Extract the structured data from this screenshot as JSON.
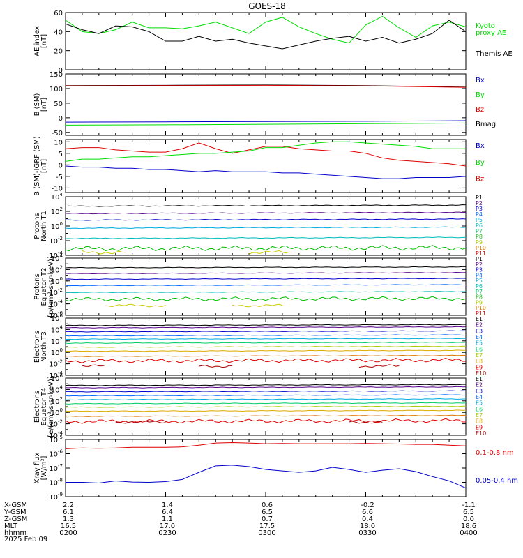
{
  "title": "GOES-18",
  "date": "2025 Feb 09",
  "colors": {
    "black": "#000000",
    "green": "#00dd00",
    "blue": "#0000cc",
    "red": "#dd0000",
    "darkred": "#aa0000"
  },
  "chart_data": [
    {
      "type": "line",
      "ylabel": [
        "AE index",
        "[nT]"
      ],
      "ylim": [
        0,
        60
      ],
      "yticks": [
        "0",
        "20",
        "40",
        "60"
      ],
      "x": [
        0,
        5,
        10,
        15,
        20,
        25,
        30,
        35,
        40,
        45,
        50,
        55,
        60,
        65,
        70,
        75,
        80,
        85,
        90,
        95,
        100,
        105,
        110,
        115,
        120
      ],
      "legend": [
        {
          "text": "Kyoto",
          "color": "#00dd00"
        },
        {
          "text": "proxy AE",
          "color": "#00dd00"
        },
        {
          "text": "Themis AE",
          "color": "#000000"
        }
      ],
      "series": [
        {
          "color": "#00dd00",
          "values": [
            52,
            40,
            38,
            42,
            50,
            44,
            44,
            43,
            46,
            50,
            44,
            38,
            50,
            55,
            45,
            38,
            32,
            28,
            47,
            56,
            44,
            34,
            46,
            50,
            45
          ]
        },
        {
          "color": "#000000",
          "values": [
            48,
            42,
            38,
            46,
            45,
            40,
            30,
            30,
            35,
            30,
            32,
            28,
            25,
            22,
            26,
            30,
            33,
            35,
            30,
            34,
            28,
            32,
            38,
            52,
            40
          ]
        }
      ]
    },
    {
      "type": "line",
      "ylabel": [
        "B (SM)",
        "[nT]"
      ],
      "ylim": [
        -60,
        150
      ],
      "yticks": [
        "-50",
        "0",
        "50",
        "100",
        "150"
      ],
      "x": [
        0,
        30,
        60,
        90,
        120
      ],
      "legend": [
        {
          "text": "Bx",
          "color": "#0000cc"
        },
        {
          "text": "By",
          "color": "#00dd00"
        },
        {
          "text": "Bz",
          "color": "#dd0000"
        },
        {
          "text": "Bmag",
          "color": "#000000"
        }
      ],
      "series": [
        {
          "color": "#000000",
          "values": [
            110,
            111,
            112,
            110,
            105
          ]
        },
        {
          "color": "#dd0000",
          "values": [
            109,
            110,
            111,
            109,
            104
          ]
        },
        {
          "color": "#0000cc",
          "values": [
            -15,
            -14,
            -13,
            -12,
            -10
          ]
        },
        {
          "color": "#00dd00",
          "values": [
            -25,
            -24,
            -22,
            -20,
            -18
          ]
        }
      ]
    },
    {
      "type": "line",
      "ylabel": [
        "B (SM)-IGRF (SM)",
        "[nT]"
      ],
      "ylim": [
        -12,
        11
      ],
      "yticks": [
        "-10",
        "-5",
        "0",
        "5",
        "10"
      ],
      "x": [
        0,
        5,
        10,
        15,
        20,
        25,
        30,
        35,
        40,
        45,
        50,
        55,
        60,
        65,
        70,
        75,
        80,
        85,
        90,
        95,
        100,
        105,
        110,
        115,
        120
      ],
      "legend": [
        {
          "text": "Bx",
          "color": "#0000cc"
        },
        {
          "text": "By",
          "color": "#00dd00"
        },
        {
          "text": "Bz",
          "color": "#dd0000"
        }
      ],
      "series": [
        {
          "color": "#dd0000",
          "values": [
            7,
            7.5,
            7.5,
            6.5,
            6,
            5.5,
            5.5,
            7,
            9.5,
            7,
            5,
            6.5,
            8,
            8,
            7,
            6.5,
            6,
            6,
            5,
            3,
            2,
            1.5,
            1,
            0.5,
            -0.5
          ]
        },
        {
          "color": "#00dd00",
          "values": [
            1.5,
            2.5,
            2.5,
            3,
            3.5,
            3.5,
            4,
            4.5,
            5,
            5,
            5.5,
            6,
            7.5,
            7.5,
            8.5,
            9.5,
            10,
            10,
            9.5,
            9,
            8.5,
            8,
            7,
            7,
            7
          ]
        },
        {
          "color": "#0000cc",
          "values": [
            -0.5,
            -1,
            -1,
            -1.5,
            -1.5,
            -2,
            -2,
            -2.5,
            -3,
            -2.5,
            -3,
            -3,
            -3,
            -3.5,
            -3.5,
            -4,
            -4.5,
            -5,
            -5.5,
            -6,
            -6,
            -5.5,
            -5.5,
            -5.5,
            -5
          ]
        }
      ]
    },
    {
      "type": "line",
      "ylabel": [
        "Protons",
        "North T1"
      ],
      "ylog": [
        -4,
        4
      ],
      "yticks": [
        {
          "e": "4"
        },
        {
          "e": "2"
        },
        {
          "e": "0"
        },
        {
          "e": "-2"
        },
        {
          "e": "-4"
        }
      ],
      "legend": [
        {
          "text": "P1",
          "color": "#000000"
        },
        {
          "text": "P2",
          "color": "#550088"
        },
        {
          "text": "P3",
          "color": "#0000cc"
        },
        {
          "text": "P4",
          "color": "#0066ff"
        },
        {
          "text": "P5",
          "color": "#00aadd"
        },
        {
          "text": "P6",
          "color": "#00bbbb"
        },
        {
          "text": "P7",
          "color": "#00cc66"
        },
        {
          "text": "P8",
          "color": "#22bb22"
        },
        {
          "text": "P9",
          "color": "#aacc00"
        },
        {
          "text": "P10",
          "color": "#dd7700"
        },
        {
          "text": "P11",
          "color": "#dd0000"
        }
      ],
      "series": [
        {
          "color": "#000000",
          "level": 2.7
        },
        {
          "color": "#550088",
          "level": 1.7
        },
        {
          "color": "#0000cc",
          "level": 0.8
        },
        {
          "color": "#00aadd",
          "level": -0.3
        },
        {
          "color": "#00bbbb",
          "level": -1.7
        },
        {
          "color": "#00bb00",
          "level": -3.1,
          "noisy": true
        },
        {
          "color": "#cccc00",
          "level": -3.6,
          "segments": [
            [
              5,
              18
            ],
            [
              55,
              68
            ]
          ]
        }
      ]
    },
    {
      "type": "line",
      "ylabel": [
        "Protons",
        "Equator T2",
        "[p/(cm²-s-sr-keV)]"
      ],
      "ylog": [
        -6,
        4
      ],
      "yticks": [
        {
          "e": "4"
        },
        {
          "e": "2"
        },
        {
          "e": "0"
        },
        {
          "e": "-2"
        },
        {
          "e": "-4"
        },
        {
          "e": "-6"
        }
      ],
      "legend": [
        {
          "text": "P1",
          "color": "#000000"
        },
        {
          "text": "P2",
          "color": "#550088"
        },
        {
          "text": "P3",
          "color": "#0000cc"
        },
        {
          "text": "P4",
          "color": "#0066ff"
        },
        {
          "text": "P5",
          "color": "#00aadd"
        },
        {
          "text": "P6",
          "color": "#00bbbb"
        },
        {
          "text": "P7",
          "color": "#00cc66"
        },
        {
          "text": "P8",
          "color": "#22bb22"
        },
        {
          "text": "P9",
          "color": "#aacc00"
        },
        {
          "text": "P10",
          "color": "#dd7700"
        },
        {
          "text": "P11",
          "color": "#dd0000"
        }
      ],
      "series": [
        {
          "color": "#000000",
          "level": 2.3
        },
        {
          "color": "#550088",
          "level": 1.3
        },
        {
          "color": "#0000cc",
          "level": 0.3
        },
        {
          "color": "#0066ff",
          "level": -0.8
        },
        {
          "color": "#00bbbb",
          "level": -2.0
        },
        {
          "color": "#00bb00",
          "level": -3.2,
          "noisy": true
        },
        {
          "color": "#cccc00",
          "level": -4.3,
          "segments": [
            [
              12,
              30
            ],
            [
              50,
              65
            ]
          ]
        }
      ]
    },
    {
      "type": "line",
      "ylabel": [
        "Electrons",
        "North T3"
      ],
      "ylog": [
        -4,
        6
      ],
      "yticks": [
        {
          "e": "6"
        },
        {
          "e": "4"
        },
        {
          "e": "2"
        },
        {
          "e": "0"
        },
        {
          "e": "-2"
        },
        {
          "e": "-4"
        }
      ],
      "legend": [
        {
          "text": "E1",
          "color": "#000000"
        },
        {
          "text": "E2",
          "color": "#550088"
        },
        {
          "text": "E3",
          "color": "#0000cc"
        },
        {
          "text": "E4",
          "color": "#0066ff"
        },
        {
          "text": "E5",
          "color": "#00aadd"
        },
        {
          "text": "E6",
          "color": "#00cc66"
        },
        {
          "text": "E7",
          "color": "#aacc00"
        },
        {
          "text": "E8",
          "color": "#ddaa00"
        },
        {
          "text": "E9",
          "color": "#dd0000"
        },
        {
          "text": "E10",
          "color": "#aa0000"
        }
      ],
      "series": [
        {
          "color": "#000000",
          "level": 4.7
        },
        {
          "color": "#550088",
          "level": 4.3
        },
        {
          "color": "#0000cc",
          "level": 3.6
        },
        {
          "color": "#0066ff",
          "level": 2.9
        },
        {
          "color": "#00aadd",
          "level": 2.3
        },
        {
          "color": "#00cc66",
          "level": 1.6
        },
        {
          "color": "#aacc00",
          "level": 0.9
        },
        {
          "color": "#ddaa00",
          "level": 0.2
        },
        {
          "color": "#dd7700",
          "level": -0.7
        },
        {
          "color": "#dd0000",
          "level": -1.5,
          "noisy": true
        },
        {
          "color": "#aa0000",
          "level": -2.4,
          "segments": [
            [
              5,
              12
            ],
            [
              40,
              50
            ],
            [
              88,
              100
            ]
          ]
        }
      ]
    },
    {
      "type": "line",
      "ylabel": [
        "Electrons",
        "Equator T4",
        "[e/(cm²-s-sr-keV)]"
      ],
      "ylog": [
        -4,
        6
      ],
      "yticks": [
        {
          "e": "6"
        },
        {
          "e": "4"
        },
        {
          "e": "2"
        },
        {
          "e": "0"
        },
        {
          "e": "-2"
        },
        {
          "e": "-4"
        }
      ],
      "legend": [
        {
          "text": "E1",
          "color": "#000000"
        },
        {
          "text": "E2",
          "color": "#550088"
        },
        {
          "text": "E3",
          "color": "#0000cc"
        },
        {
          "text": "E4",
          "color": "#0066ff"
        },
        {
          "text": "E5",
          "color": "#00aadd"
        },
        {
          "text": "E6",
          "color": "#00cc66"
        },
        {
          "text": "E7",
          "color": "#aacc00"
        },
        {
          "text": "E8",
          "color": "#ddaa00"
        },
        {
          "text": "E9",
          "color": "#dd0000"
        },
        {
          "text": "E10",
          "color": "#aa0000"
        }
      ],
      "series": [
        {
          "color": "#000000",
          "level": 4.7
        },
        {
          "color": "#550088",
          "level": 4.3
        },
        {
          "color": "#0000cc",
          "level": 3.6
        },
        {
          "color": "#0066ff",
          "level": 2.9
        },
        {
          "color": "#00aadd",
          "level": 2.2
        },
        {
          "color": "#00cc66",
          "level": 1.5
        },
        {
          "color": "#aacc00",
          "level": 0.9
        },
        {
          "color": "#ddaa00",
          "level": 0.2
        },
        {
          "color": "#dd7700",
          "level": -0.7
        },
        {
          "color": "#dd0000",
          "level": -1.6,
          "noisy": true
        },
        {
          "color": "#aa0000",
          "level": -1.7,
          "segments": [
            [
              15,
              30
            ],
            [
              85,
              95
            ]
          ]
        }
      ]
    },
    {
      "type": "line",
      "ylabel": [
        "Xray flux",
        "[W/m²]"
      ],
      "ylog": [
        -9,
        -5
      ],
      "yticks": [
        {
          "e": "-5"
        },
        {
          "e": "-6"
        },
        {
          "e": "-7"
        },
        {
          "e": "-8"
        },
        {
          "e": "-9"
        }
      ],
      "x": [
        0,
        5,
        10,
        15,
        20,
        25,
        30,
        35,
        40,
        45,
        50,
        55,
        60,
        65,
        70,
        75,
        80,
        85,
        90,
        95,
        100,
        105,
        110,
        115,
        120
      ],
      "legend": [
        {
          "text": "0.1-0.8 nm",
          "color": "#dd0000"
        },
        {
          "text": "0.05-0.4 nm",
          "color": "#0000cc"
        }
      ],
      "series": [
        {
          "color": "#dd0000",
          "values": [
            -5.65,
            -5.6,
            -5.62,
            -5.6,
            -5.55,
            -5.55,
            -5.55,
            -5.52,
            -5.4,
            -5.25,
            -5.22,
            -5.25,
            -5.3,
            -5.28,
            -5.3,
            -5.3,
            -5.3,
            -5.3,
            -5.28,
            -5.3,
            -5.32,
            -5.35,
            -5.35,
            -5.4,
            -5.45
          ]
        },
        {
          "color": "#0000cc",
          "values": [
            -8.0,
            -8.0,
            -8.05,
            -7.9,
            -7.98,
            -8.0,
            -7.95,
            -7.8,
            -7.3,
            -6.85,
            -6.8,
            -6.9,
            -7.1,
            -7.2,
            -7.3,
            -7.2,
            -6.95,
            -7.1,
            -7.3,
            -7.15,
            -7.05,
            -7.25,
            -7.6,
            -7.9,
            -8.4
          ]
        }
      ]
    }
  ],
  "footer": {
    "labels": [
      "X-GSM",
      "Y-GSM",
      "Z-GSM",
      "MLT",
      "hhmm"
    ],
    "columns": [
      {
        "values": [
          "2.2",
          "6.1",
          "1.3",
          "16.5",
          "0200"
        ]
      },
      {
        "values": [
          "1.4",
          "6.4",
          "1.1",
          "17.0",
          "0230"
        ]
      },
      {
        "values": [
          "0.6",
          "6.5",
          "0.7",
          "17.5",
          "0300"
        ]
      },
      {
        "values": [
          "-0.2",
          "6.6",
          "0.4",
          "18.0",
          "0330"
        ]
      },
      {
        "values": [
          "-1.1",
          "6.5",
          "0.0",
          "18.6",
          "0400"
        ]
      }
    ]
  }
}
